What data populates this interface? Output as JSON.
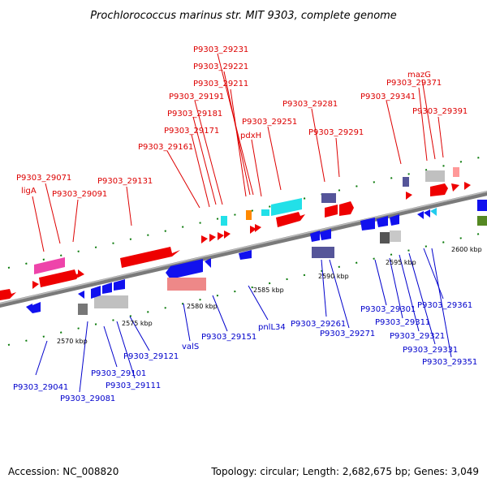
{
  "title": "Prochlorococcus marinus str. MIT 9303, complete genome",
  "footer": {
    "accession": "Accession: NC_008820",
    "topology": "Topology: circular; Length: 2,682,675 bp; Genes: 3,049"
  },
  "colors": {
    "forward_label": "#dd0000",
    "reverse_label": "#0000cc",
    "backbone": "#7a7a7a",
    "tick_mark": "#0a7a0a"
  },
  "scale_ticks": [
    "2570 kbp",
    "2575 kbp",
    "2580 kbp",
    "2585 kbp",
    "2590 kbp",
    "2595 kbp",
    "2600 kbp"
  ],
  "top_labels": [
    "P9303_29231",
    "P9303_29221",
    "P9303_29211",
    "P9303_29191",
    "P9303_29181",
    "P9303_29171",
    "pdxH",
    "P9303_29251",
    "P9303_29161",
    "P9303_29281",
    "P9303_29291",
    "mazG",
    "P9303_29371",
    "P9303_29341",
    "P9303_29391",
    "P9303_29071",
    "ligA",
    "P9303_29091",
    "P9303_29131"
  ],
  "bottom_labels": [
    "P9303_29041",
    "P9303_29081",
    "P9303_29101",
    "P9303_29111",
    "P9303_29121",
    "valS",
    "P9303_29151",
    "pnlL34",
    "P9303_29261",
    "P9303_29271",
    "P9303_29301",
    "P9303_29311",
    "P9303_29321",
    "P9303_29331",
    "P9303_29351",
    "P9303_29361"
  ]
}
